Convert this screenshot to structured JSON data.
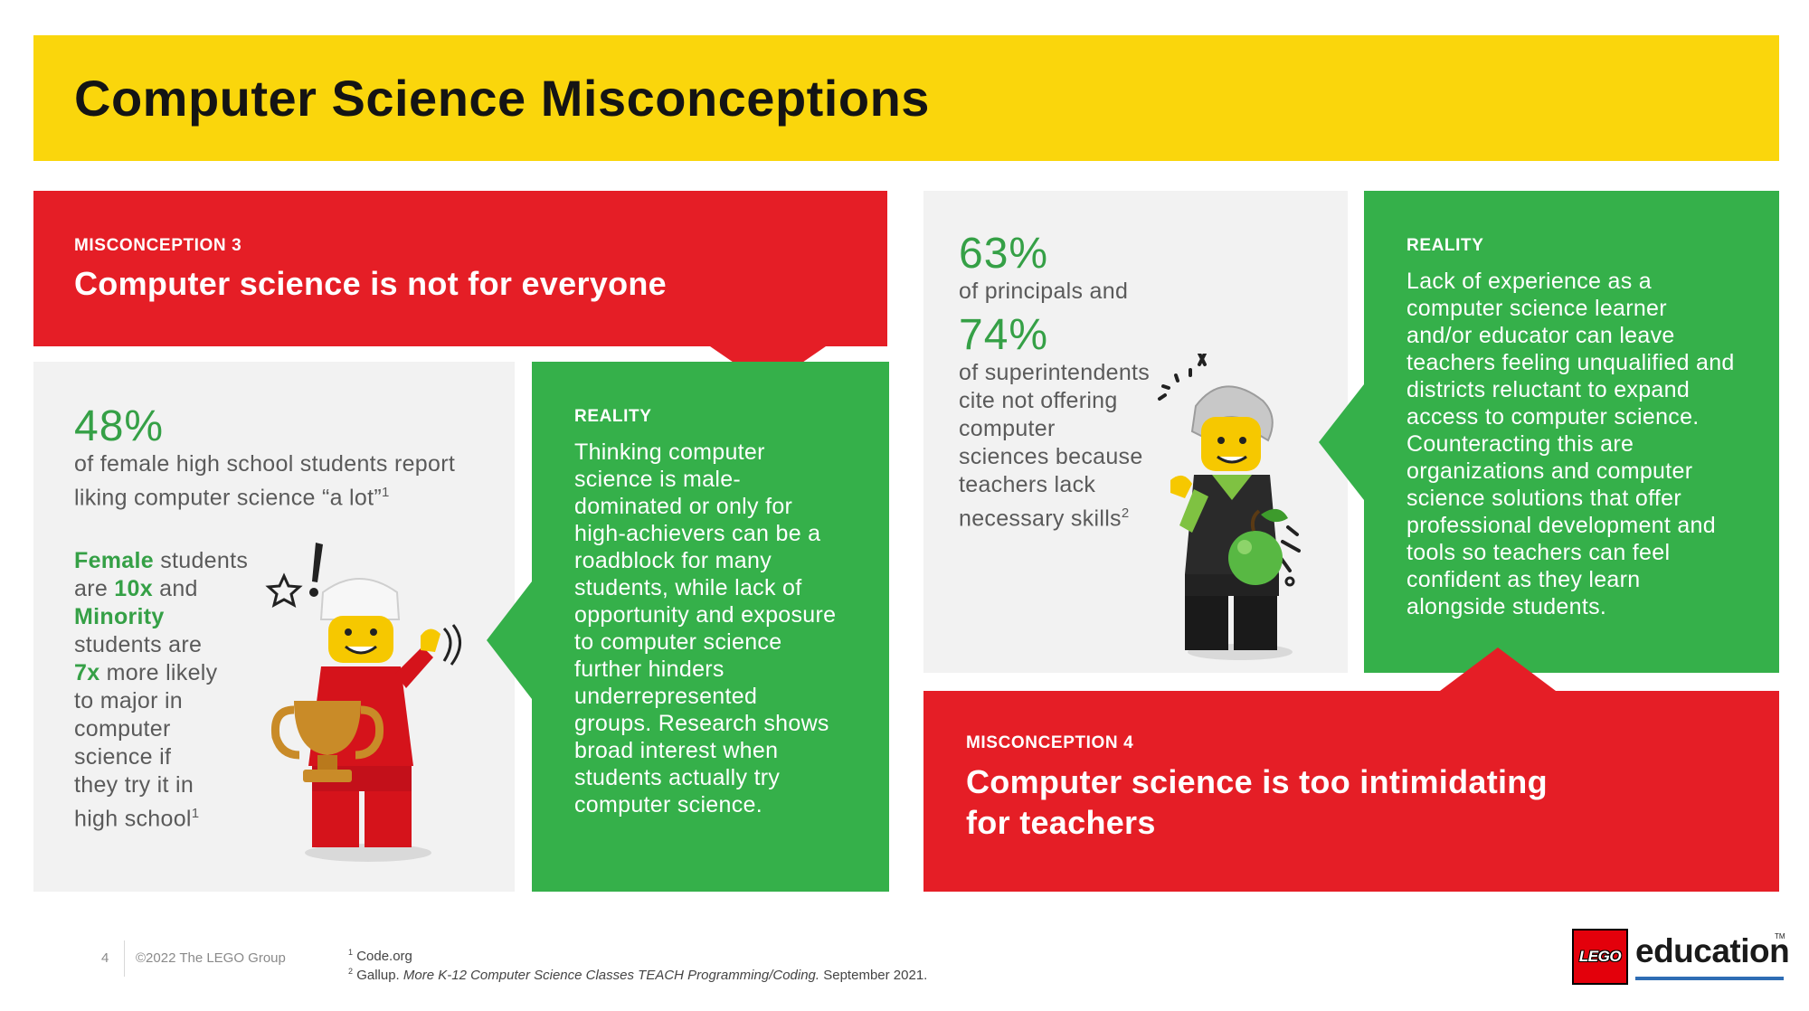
{
  "header": {
    "title": "Computer Science Misconceptions"
  },
  "misconception_3": {
    "kicker": "MISCONCEPTION 3",
    "heading": "Computer science is not for everyone"
  },
  "left_stats": {
    "pct": "48%",
    "line1": "of female high school students report",
    "line2": "liking computer science “a lot”",
    "line2_sup": "1",
    "para": [
      {
        "hl": "Female",
        "rest": " students"
      },
      {
        "pre": "are ",
        "hl": "10x",
        "rest": " and"
      },
      {
        "hl": "Minority",
        "rest": ""
      },
      {
        "pre": "students are",
        "hl": "",
        "rest": ""
      },
      {
        "pre": "",
        "hl": "7x",
        "rest": " more likely"
      },
      {
        "pre": "to major in",
        "hl": "",
        "rest": ""
      },
      {
        "pre": "computer",
        "hl": "",
        "rest": ""
      },
      {
        "pre": "science if",
        "hl": "",
        "rest": ""
      },
      {
        "pre": "they try it in",
        "hl": "",
        "rest": ""
      },
      {
        "pre": "high school",
        "hl": "",
        "rest": ""
      }
    ],
    "para_sup": "1"
  },
  "reality_1": {
    "kicker": "REALITY",
    "lines": [
      "Thinking computer",
      "science is male-",
      "dominated or only for",
      "high-achievers can be a",
      "roadblock for many",
      "students, while lack of",
      "opportunity and exposure",
      "to computer science",
      "further hinders",
      "underrepresented",
      "groups. Research shows",
      "broad interest when",
      "students actually try",
      "computer science."
    ]
  },
  "right_stats": {
    "pct1": "63%",
    "text1": "of principals and",
    "pct2": "74%",
    "lines": [
      "of superintendents",
      "cite not offering",
      "computer",
      "sciences because",
      "teachers lack",
      "necessary skills"
    ],
    "sup": "2"
  },
  "reality_2": {
    "kicker": "REALITY",
    "lines": [
      "Lack of experience as a",
      "computer science learner",
      "and/or educator can leave",
      "teachers feeling unqualified and",
      "districts reluctant to expand",
      "access to computer science.",
      "Counteracting this are",
      "organizations and computer",
      "science solutions that offer",
      "professional development and",
      "tools so teachers can feel",
      "confident as they learn",
      "alongside students."
    ]
  },
  "misconception_4": {
    "kicker": "MISCONCEPTION 4",
    "heading_line1": "Computer science is too intimidating",
    "heading_line2": "for teachers"
  },
  "footer": {
    "page_number": "4",
    "copyright": "©2022 The LEGO Group",
    "footnote1_num": "1",
    "footnote1": "Code.org",
    "footnote2_num": "2",
    "footnote2_a": "Gallup. ",
    "footnote2_italic": "More K-12 Computer Science Classes TEACH Programming/Coding.",
    "footnote2_b": " September 2021."
  },
  "logo": {
    "brand": "LEGO",
    "word": "education",
    "tm": "TM"
  },
  "colors": {
    "banner_yellow": "#fad60c",
    "red": "#e51e26",
    "green": "#35b04a",
    "highlight_green": "#35a046",
    "panel_gray": "#f2f2f2"
  }
}
